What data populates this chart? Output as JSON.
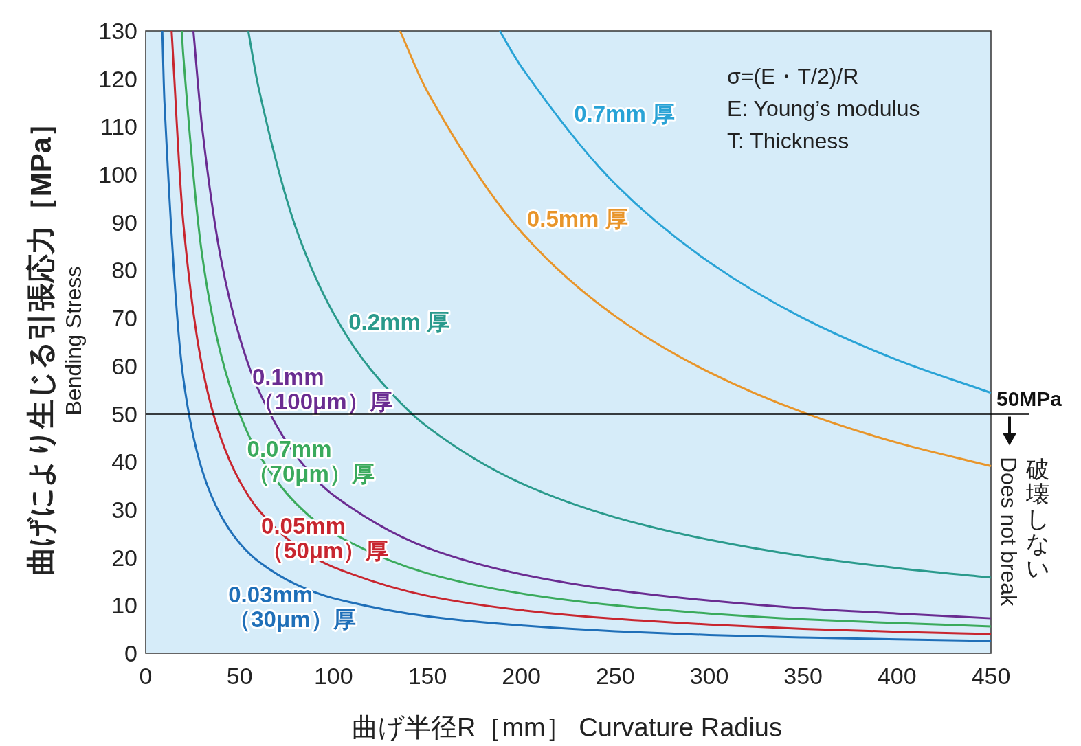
{
  "chart_data": {
    "type": "line",
    "xlabel": "曲げ半径R［mm］ Curvature Radius",
    "ylabel": "曲げにより生じる引張応力［MPa］\nBending Stress",
    "xlim": [
      0,
      450
    ],
    "ylim": [
      0,
      130
    ],
    "xticks": [
      0,
      50,
      100,
      150,
      200,
      250,
      300,
      350,
      400,
      450
    ],
    "yticks": [
      0,
      10,
      20,
      30,
      40,
      50,
      60,
      70,
      80,
      90,
      100,
      110,
      120,
      130
    ],
    "series": [
      {
        "name": "0.03mm\n（30μm）厚",
        "color": "#1f6fb8",
        "x": [
          8.85,
          10,
          20,
          30,
          40,
          50,
          60,
          80,
          100,
          150,
          200,
          250,
          300,
          350,
          400,
          450
        ],
        "values": [
          130,
          115,
          57.5,
          38.3,
          28.8,
          23,
          19.2,
          14.4,
          11.5,
          7.7,
          5.8,
          4.6,
          3.8,
          3.3,
          2.9,
          2.6
        ]
      },
      {
        "name": "0.05mm\n（50μm）厚",
        "color": "#c8262f",
        "x": [
          13.8,
          20,
          30,
          40,
          50,
          60,
          80,
          100,
          150,
          200,
          250,
          300,
          350,
          400,
          450
        ],
        "values": [
          130,
          90,
          60,
          45,
          36,
          30,
          22.5,
          18,
          12,
          9,
          7.2,
          6,
          5.1,
          4.5,
          4
        ]
      },
      {
        "name": "0.07mm\n（70μm）厚",
        "color": "#3aaa5c",
        "x": [
          19.2,
          20,
          30,
          40,
          50,
          60,
          80,
          100,
          150,
          200,
          250,
          300,
          350,
          400,
          450
        ],
        "values": [
          130,
          125,
          83.3,
          62.5,
          50,
          41.7,
          31.3,
          25,
          16.7,
          12.5,
          10,
          8.3,
          7.1,
          6.3,
          5.6
        ]
      },
      {
        "name": "0.1mm\n（100μm）厚",
        "color": "#6a2c91",
        "x": [
          25.4,
          30,
          40,
          50,
          60,
          80,
          100,
          150,
          200,
          250,
          300,
          350,
          400,
          450
        ],
        "values": [
          130,
          110,
          82.5,
          66,
          55,
          41.3,
          33,
          22,
          16.5,
          13.2,
          11,
          9.4,
          8.3,
          7.3
        ]
      },
      {
        "name": "0.2mm 厚",
        "color": "#2a9a8c",
        "x": [
          54.6,
          60,
          80,
          100,
          120,
          150,
          200,
          250,
          300,
          350,
          400,
          450
        ],
        "values": [
          130,
          118.3,
          88.8,
          71,
          59.2,
          47.3,
          35.5,
          28.4,
          23.7,
          20.3,
          17.8,
          15.8
        ]
      },
      {
        "name": "0.5mm 厚",
        "color": "#e8952a",
        "x": [
          135.4,
          150,
          200,
          250,
          300,
          350,
          400,
          450
        ],
        "values": [
          130,
          117.3,
          88,
          70.4,
          58.7,
          50.3,
          44,
          39.1
        ]
      },
      {
        "name": "0.7mm 厚",
        "color": "#29a3d6",
        "x": [
          188.5,
          200,
          250,
          300,
          350,
          400,
          450
        ],
        "values": [
          130,
          122.5,
          98,
          81.7,
          70,
          61.3,
          54.4
        ]
      }
    ],
    "ref_lines": [
      {
        "axis": "y",
        "value": 50,
        "label": "50MPa",
        "color": "#000000"
      }
    ],
    "annotations": [
      "σ=(E・T/2)/R",
      "E: Young’s modulus",
      "T: Thickness",
      "破壊しない",
      "Does not break"
    ]
  }
}
